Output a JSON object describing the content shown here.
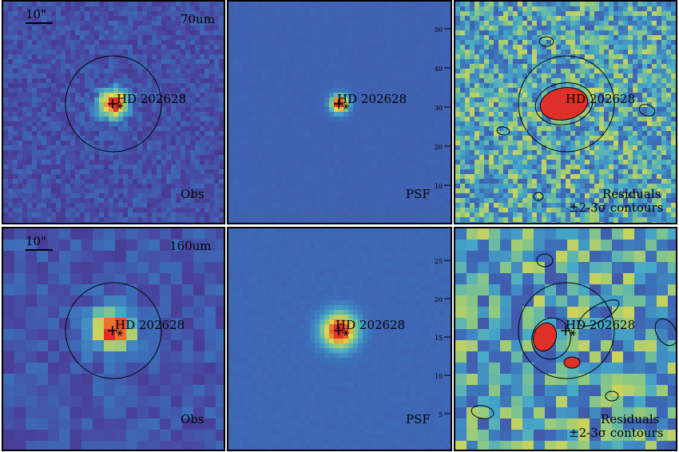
{
  "star_name": "HD 202628",
  "scale_bar": "10\"",
  "rows": [
    {
      "band": "70um",
      "panels": [
        {
          "id": "obs",
          "label": "Obs"
        },
        {
          "id": "psf",
          "label": "PSF"
        },
        {
          "id": "res",
          "label": "Residuals",
          "label2": "±2-3σ contours"
        }
      ]
    },
    {
      "band": "160um",
      "panels": [
        {
          "id": "obs",
          "label": "Obs"
        },
        {
          "id": "psf",
          "label": "PSF"
        },
        {
          "id": "res",
          "label": "Residuals",
          "label2": "±2-3σ contours"
        }
      ]
    }
  ],
  "psf_axis_ticks_row1": [
    "50",
    "40",
    "30",
    "20",
    "10"
  ],
  "psf_axis_ticks_row2": [
    "25",
    "20",
    "15",
    "10",
    "5"
  ],
  "colors": {
    "background_blue": "#3b4fa3",
    "purple": "#5a3f92",
    "cyan": "#3fa9c9",
    "yellow": "#e6d84a",
    "orange": "#f08a2e",
    "red": "#e0322a"
  }
}
